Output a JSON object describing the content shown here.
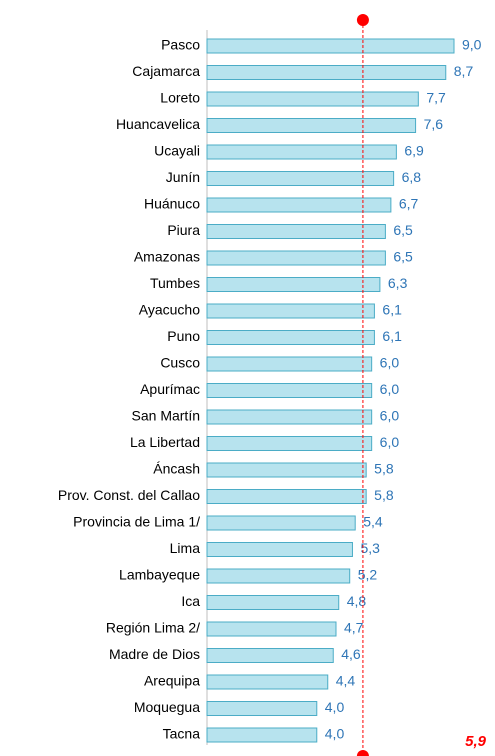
{
  "chart_data": {
    "type": "bar",
    "orientation": "horizontal",
    "categories": [
      "Pasco",
      "Cajamarca",
      "Loreto",
      "Huancavelica",
      "Ucayali",
      "Junín",
      "Huánuco",
      "Piura",
      "Amazonas",
      "Tumbes",
      "Ayacucho",
      "Puno",
      "Cusco",
      "Apurímac",
      "San Martín",
      "La Libertad",
      "Áncash",
      "Prov. Const. del Callao",
      "Provincia de Lima 1/",
      "Lima",
      "Lambayeque",
      "Ica",
      "Región Lima 2/",
      "Madre de Dios",
      "Arequipa",
      "Moquegua",
      "Tacna"
    ],
    "values": [
      9.0,
      8.7,
      7.7,
      7.6,
      6.9,
      6.8,
      6.7,
      6.5,
      6.5,
      6.3,
      6.1,
      6.1,
      6.0,
      6.0,
      6.0,
      6.0,
      5.8,
      5.8,
      5.4,
      5.3,
      5.2,
      4.8,
      4.7,
      4.6,
      4.4,
      4.0,
      4.0
    ],
    "value_labels": [
      "9,0",
      "8,7",
      "7,7",
      "7,6",
      "6,9",
      "6,8",
      "6,7",
      "6,5",
      "6,5",
      "6,3",
      "6,1",
      "6,1",
      "6,0",
      "6,0",
      "6,0",
      "6,0",
      "5,8",
      "5,8",
      "5,4",
      "5,3",
      "5,2",
      "4,8",
      "4,7",
      "4,6",
      "4,4",
      "4,0",
      "4,0"
    ],
    "color": "#b7e3ee",
    "edge_color": "#4bacc6",
    "reference_line": {
      "value": 5.9,
      "label": "5,9",
      "color": "#ff0000"
    }
  }
}
